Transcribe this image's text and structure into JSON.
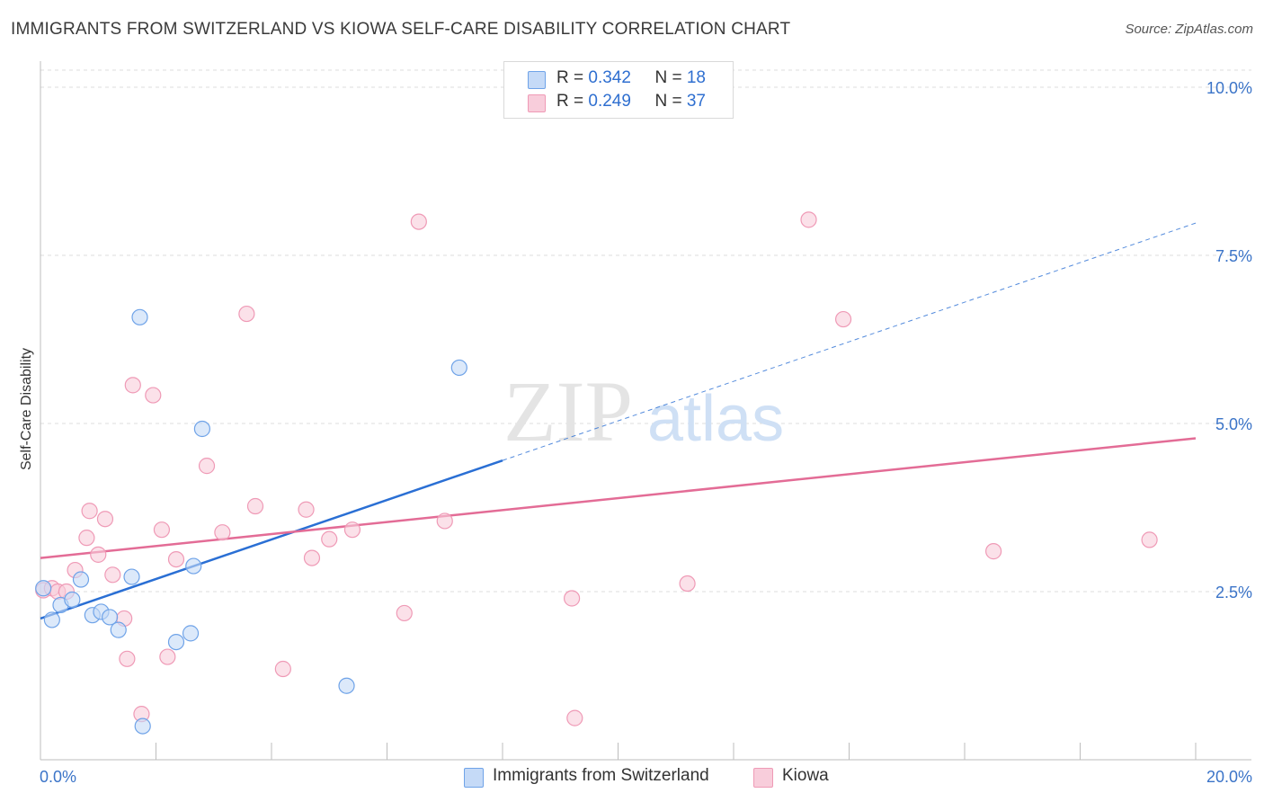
{
  "title": "IMMIGRANTS FROM SWITZERLAND VS KIOWA SELF-CARE DISABILITY CORRELATION CHART",
  "source": "Source: ZipAtlas.com",
  "watermark": {
    "zip": "ZIP",
    "atlas": "atlas"
  },
  "legend": {
    "series1": {
      "r_label": "R = ",
      "r_value": "0.342",
      "n_label": "N = ",
      "n_value": "18"
    },
    "series2": {
      "r_label": "R = ",
      "r_value": "0.249",
      "n_label": "N = ",
      "n_value": "37"
    }
  },
  "chart_data": {
    "type": "scatter",
    "title": "IMMIGRANTS FROM SWITZERLAND VS KIOWA SELF-CARE DISABILITY CORRELATION CHART",
    "xlabel": "",
    "ylabel": "Self-Care Disability",
    "xlim": [
      0,
      20
    ],
    "ylim": [
      0,
      10.5
    ],
    "x_tick_labels": [
      {
        "value": 0,
        "label": "0.0%"
      },
      {
        "value": 20,
        "label": "20.0%"
      }
    ],
    "y_tick_labels": [
      {
        "value": 2.5,
        "label": "2.5%"
      },
      {
        "value": 5.0,
        "label": "5.0%"
      },
      {
        "value": 7.5,
        "label": "7.5%"
      },
      {
        "value": 10.0,
        "label": "10.0%"
      }
    ],
    "grid": true,
    "series": [
      {
        "name": "Immigrants from Switzerland",
        "color": "#6fa3e8",
        "fill": "#c5daf7",
        "trend_color": "#2a6fd4",
        "trend": {
          "x0": 0,
          "y0": 2.1,
          "x1": 8,
          "y1": 4.45,
          "dashed_to_x": 20,
          "dashed_to_y": 7.98
        },
        "points": [
          {
            "x": 0.05,
            "y": 2.55
          },
          {
            "x": 0.2,
            "y": 2.08
          },
          {
            "x": 0.35,
            "y": 2.3
          },
          {
            "x": 0.55,
            "y": 2.38
          },
          {
            "x": 0.7,
            "y": 2.68
          },
          {
            "x": 0.9,
            "y": 2.15
          },
          {
            "x": 1.05,
            "y": 2.2
          },
          {
            "x": 1.2,
            "y": 2.12
          },
          {
            "x": 1.35,
            "y": 1.93
          },
          {
            "x": 1.58,
            "y": 2.72
          },
          {
            "x": 1.72,
            "y": 6.58
          },
          {
            "x": 1.77,
            "y": 0.5
          },
          {
            "x": 2.35,
            "y": 1.75
          },
          {
            "x": 2.6,
            "y": 1.88
          },
          {
            "x": 2.65,
            "y": 2.88
          },
          {
            "x": 2.8,
            "y": 4.92
          },
          {
            "x": 5.3,
            "y": 1.1
          },
          {
            "x": 7.25,
            "y": 5.83
          }
        ]
      },
      {
        "name": "Kiowa",
        "color": "#ef9ab6",
        "fill": "#f8cddb",
        "trend_color": "#e36c96",
        "trend": {
          "x0": 0,
          "y0": 3.0,
          "x1": 20,
          "y1": 4.78
        },
        "points": [
          {
            "x": 0.05,
            "y": 2.52
          },
          {
            "x": 0.2,
            "y": 2.55
          },
          {
            "x": 0.3,
            "y": 2.5
          },
          {
            "x": 0.45,
            "y": 2.5
          },
          {
            "x": 0.6,
            "y": 2.82
          },
          {
            "x": 0.8,
            "y": 3.3
          },
          {
            "x": 0.85,
            "y": 3.7
          },
          {
            "x": 1.0,
            "y": 3.05
          },
          {
            "x": 1.12,
            "y": 3.58
          },
          {
            "x": 1.25,
            "y": 2.75
          },
          {
            "x": 1.45,
            "y": 2.1
          },
          {
            "x": 1.5,
            "y": 1.5
          },
          {
            "x": 1.6,
            "y": 5.57
          },
          {
            "x": 1.75,
            "y": 0.68
          },
          {
            "x": 1.95,
            "y": 5.42
          },
          {
            "x": 2.1,
            "y": 3.42
          },
          {
            "x": 2.2,
            "y": 1.53
          },
          {
            "x": 2.35,
            "y": 2.98
          },
          {
            "x": 2.88,
            "y": 4.37
          },
          {
            "x": 3.15,
            "y": 3.38
          },
          {
            "x": 3.57,
            "y": 6.63
          },
          {
            "x": 3.72,
            "y": 3.77
          },
          {
            "x": 4.2,
            "y": 1.35
          },
          {
            "x": 4.6,
            "y": 3.72
          },
          {
            "x": 4.7,
            "y": 3.0
          },
          {
            "x": 5.0,
            "y": 3.28
          },
          {
            "x": 5.4,
            "y": 3.42
          },
          {
            "x": 6.3,
            "y": 2.18
          },
          {
            "x": 6.55,
            "y": 8.0
          },
          {
            "x": 7.0,
            "y": 3.55
          },
          {
            "x": 9.2,
            "y": 2.4
          },
          {
            "x": 9.25,
            "y": 0.62
          },
          {
            "x": 11.2,
            "y": 2.62
          },
          {
            "x": 13.3,
            "y": 8.03
          },
          {
            "x": 13.9,
            "y": 6.55
          },
          {
            "x": 16.5,
            "y": 3.1
          },
          {
            "x": 19.2,
            "y": 3.27
          }
        ]
      }
    ]
  }
}
